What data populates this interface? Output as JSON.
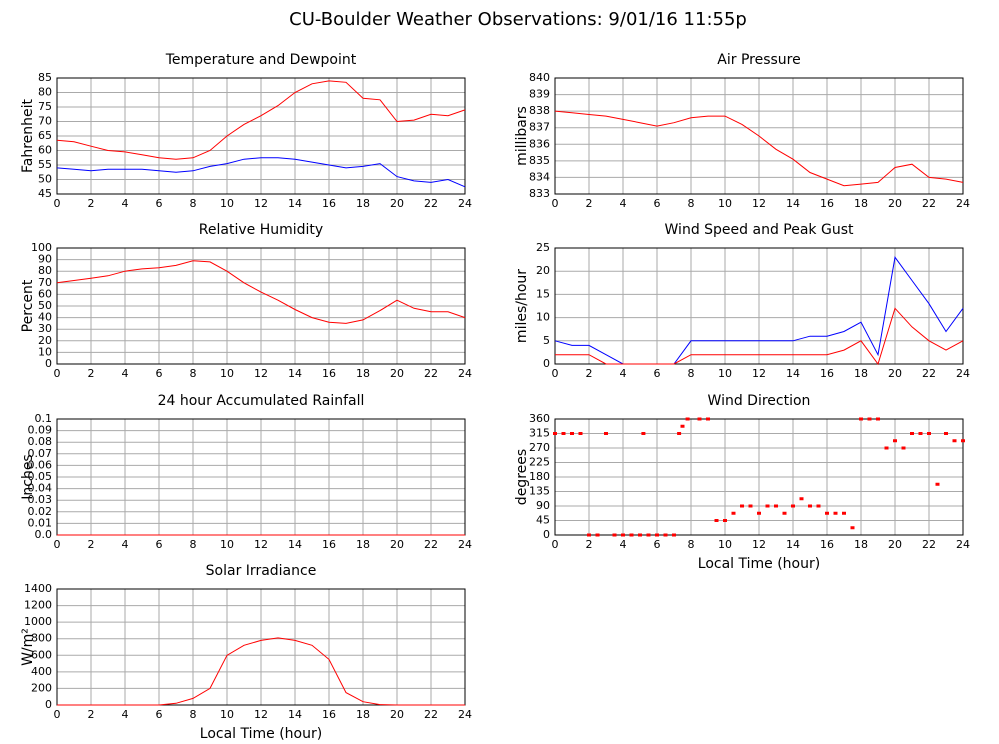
{
  "title": "CU-Boulder Weather Observations: 9/01/16 11:55p",
  "chart_data": [
    {
      "type": "line",
      "title": "Temperature and Dewpoint",
      "ylabel": "Fahrenheit",
      "x": [
        0,
        1,
        2,
        3,
        4,
        5,
        6,
        7,
        8,
        9,
        10,
        11,
        12,
        13,
        14,
        15,
        16,
        17,
        18,
        19,
        20,
        21,
        22,
        23,
        24
      ],
      "series": [
        {
          "name": "Temperature",
          "color": "#ff0000",
          "values": [
            63.5,
            63,
            61.5,
            60,
            59.5,
            58.5,
            57.5,
            57,
            57.5,
            60,
            65,
            69,
            72,
            75.5,
            80,
            83,
            84,
            83.5,
            78,
            77.5,
            70,
            70.5,
            72.5,
            72,
            74
          ]
        },
        {
          "name": "Dewpoint",
          "color": "#0000ff",
          "values": [
            54,
            53.5,
            53,
            53.5,
            53.5,
            53.5,
            53,
            52.5,
            53,
            54.5,
            55.5,
            57,
            57.5,
            57.5,
            57,
            56,
            55,
            54,
            54.5,
            55.5,
            51,
            49.5,
            49,
            50,
            47.5
          ]
        }
      ],
      "xlim": [
        0,
        24
      ],
      "xticks": [
        0,
        2,
        4,
        6,
        8,
        10,
        12,
        14,
        16,
        18,
        20,
        22,
        24
      ],
      "ylim": [
        45,
        85
      ],
      "yticks": [
        45,
        50,
        55,
        60,
        65,
        70,
        75,
        80,
        85
      ],
      "grid": true
    },
    {
      "type": "line",
      "title": "Air Pressure",
      "ylabel": "millibars",
      "x": [
        0,
        1,
        2,
        3,
        4,
        5,
        6,
        7,
        8,
        9,
        10,
        11,
        12,
        13,
        14,
        15,
        16,
        17,
        18,
        19,
        20,
        21,
        22,
        23,
        24
      ],
      "series": [
        {
          "name": "Pressure",
          "color": "#ff0000",
          "values": [
            838,
            837.9,
            837.8,
            837.7,
            837.5,
            837.3,
            837.1,
            837.3,
            837.6,
            837.7,
            837.7,
            837.2,
            836.5,
            835.7,
            835.1,
            834.3,
            833.9,
            833.5,
            833.6,
            833.7,
            834.6,
            834.8,
            834,
            833.9,
            833.7
          ]
        }
      ],
      "xlim": [
        0,
        24
      ],
      "xticks": [
        0,
        2,
        4,
        6,
        8,
        10,
        12,
        14,
        16,
        18,
        20,
        22,
        24
      ],
      "ylim": [
        833,
        840
      ],
      "yticks": [
        833,
        834,
        835,
        836,
        837,
        838,
        839,
        840
      ],
      "grid": true
    },
    {
      "type": "line",
      "title": "Relative Humidity",
      "ylabel": "Percent",
      "x": [
        0,
        1,
        2,
        3,
        4,
        5,
        6,
        7,
        8,
        9,
        10,
        11,
        12,
        13,
        14,
        15,
        16,
        17,
        18,
        19,
        20,
        21,
        22,
        23,
        24
      ],
      "series": [
        {
          "name": "Humidity",
          "color": "#ff0000",
          "values": [
            70,
            72,
            74,
            76,
            80,
            82,
            83,
            85,
            89,
            88,
            80,
            70,
            62,
            55,
            47,
            40,
            36,
            35,
            38,
            46,
            55,
            48,
            45,
            45,
            40
          ]
        }
      ],
      "xlim": [
        0,
        24
      ],
      "xticks": [
        0,
        2,
        4,
        6,
        8,
        10,
        12,
        14,
        16,
        18,
        20,
        22,
        24
      ],
      "ylim": [
        0,
        100
      ],
      "yticks": [
        0,
        10,
        20,
        30,
        40,
        50,
        60,
        70,
        80,
        90,
        100
      ],
      "grid": true
    },
    {
      "type": "line",
      "title": "Wind Speed and Peak Gust",
      "ylabel": "miles/hour",
      "x": [
        0,
        1,
        2,
        3,
        4,
        5,
        6,
        7,
        8,
        9,
        10,
        11,
        12,
        13,
        14,
        15,
        16,
        17,
        18,
        19,
        20,
        21,
        22,
        23,
        24
      ],
      "series": [
        {
          "name": "Peak Gust",
          "color": "#0000ff",
          "values": [
            5,
            4,
            4,
            2,
            0,
            0,
            0,
            0,
            5,
            5,
            5,
            5,
            5,
            5,
            5,
            6,
            6,
            7,
            9,
            2,
            23,
            18,
            13,
            7,
            12
          ]
        },
        {
          "name": "Wind Speed",
          "color": "#ff0000",
          "values": [
            2,
            2,
            2,
            0,
            0,
            0,
            0,
            0,
            2,
            2,
            2,
            2,
            2,
            2,
            2,
            2,
            2,
            3,
            5,
            0,
            12,
            8,
            5,
            3,
            5
          ]
        }
      ],
      "xlim": [
        0,
        24
      ],
      "xticks": [
        0,
        2,
        4,
        6,
        8,
        10,
        12,
        14,
        16,
        18,
        20,
        22,
        24
      ],
      "ylim": [
        0,
        25
      ],
      "yticks": [
        0,
        5,
        10,
        15,
        20,
        25
      ],
      "grid": true
    },
    {
      "type": "line",
      "title": "24 hour Accumulated Rainfall",
      "ylabel": "Inches",
      "x": [
        0,
        24
      ],
      "series": [
        {
          "name": "Rainfall",
          "color": "#ff0000",
          "values": [
            0,
            0
          ]
        }
      ],
      "xlim": [
        0,
        24
      ],
      "xticks": [
        0,
        2,
        4,
        6,
        8,
        10,
        12,
        14,
        16,
        18,
        20,
        22,
        24
      ],
      "ylim": [
        0,
        0.1
      ],
      "yticks": [
        {
          "value": 0,
          "label": "0.0"
        },
        0.01,
        0.02,
        0.03,
        0.04,
        0.05,
        0.06,
        0.07,
        0.08,
        0.09,
        0.1
      ],
      "grid": true
    },
    {
      "type": "scatter",
      "title": "Wind Direction",
      "ylabel": "degrees",
      "xlabel": "Local Time (hour)",
      "x": [
        0,
        0.5,
        1,
        1.5,
        2,
        2.5,
        3,
        3.5,
        4,
        4.5,
        5,
        5.2,
        5.5,
        6,
        6.5,
        7,
        7.3,
        7.5,
        7.8,
        8.5,
        9,
        9.5,
        10,
        10.5,
        11,
        11.5,
        12,
        12.5,
        13,
        13.5,
        14,
        14.5,
        15,
        15.5,
        16,
        16.5,
        17,
        17.5,
        18,
        18.5,
        19,
        19.5,
        20,
        20.5,
        21,
        21.5,
        22,
        22.5,
        23,
        23.5,
        24
      ],
      "series": [
        {
          "name": "Direction",
          "color": "#ff0000",
          "values": [
            315,
            315,
            315,
            315,
            0,
            0,
            315,
            0,
            0,
            0,
            0,
            315,
            0,
            0,
            0,
            0,
            315,
            337.5,
            360,
            360,
            360,
            45,
            45,
            67.5,
            90,
            90,
            67.5,
            90,
            90,
            67.5,
            90,
            112.5,
            90,
            90,
            67.5,
            67.5,
            67.5,
            22.5,
            360,
            360,
            360,
            270,
            292.5,
            270,
            315,
            315,
            315,
            157.5,
            315,
            292.5,
            292.5
          ]
        }
      ],
      "xlim": [
        0,
        24
      ],
      "xticks": [
        0,
        2,
        4,
        6,
        8,
        10,
        12,
        14,
        16,
        18,
        20,
        22,
        24
      ],
      "ylim": [
        0,
        360
      ],
      "yticks": [
        0,
        45,
        90,
        135,
        180,
        225,
        270,
        315,
        360
      ],
      "grid": true
    },
    {
      "type": "line",
      "title": "Solar Irradiance",
      "ylabel": "W/m²",
      "xlabel": "Local Time (hour)",
      "x": [
        0,
        1,
        2,
        3,
        4,
        5,
        6,
        7,
        8,
        9,
        10,
        11,
        12,
        13,
        14,
        15,
        16,
        17,
        18,
        19,
        20,
        21,
        22,
        23,
        24
      ],
      "series": [
        {
          "name": "Irradiance",
          "color": "#ff0000",
          "values": [
            0,
            0,
            0,
            0,
            0,
            0,
            0,
            20,
            80,
            200,
            600,
            720,
            780,
            810,
            780,
            720,
            550,
            150,
            40,
            5,
            0,
            0,
            0,
            0,
            0
          ]
        }
      ],
      "xlim": [
        0,
        24
      ],
      "xticks": [
        0,
        2,
        4,
        6,
        8,
        10,
        12,
        14,
        16,
        18,
        20,
        22,
        24
      ],
      "ylim": [
        0,
        1400
      ],
      "yticks": [
        0,
        200,
        400,
        600,
        800,
        1000,
        1200,
        1400
      ],
      "grid": true
    }
  ]
}
